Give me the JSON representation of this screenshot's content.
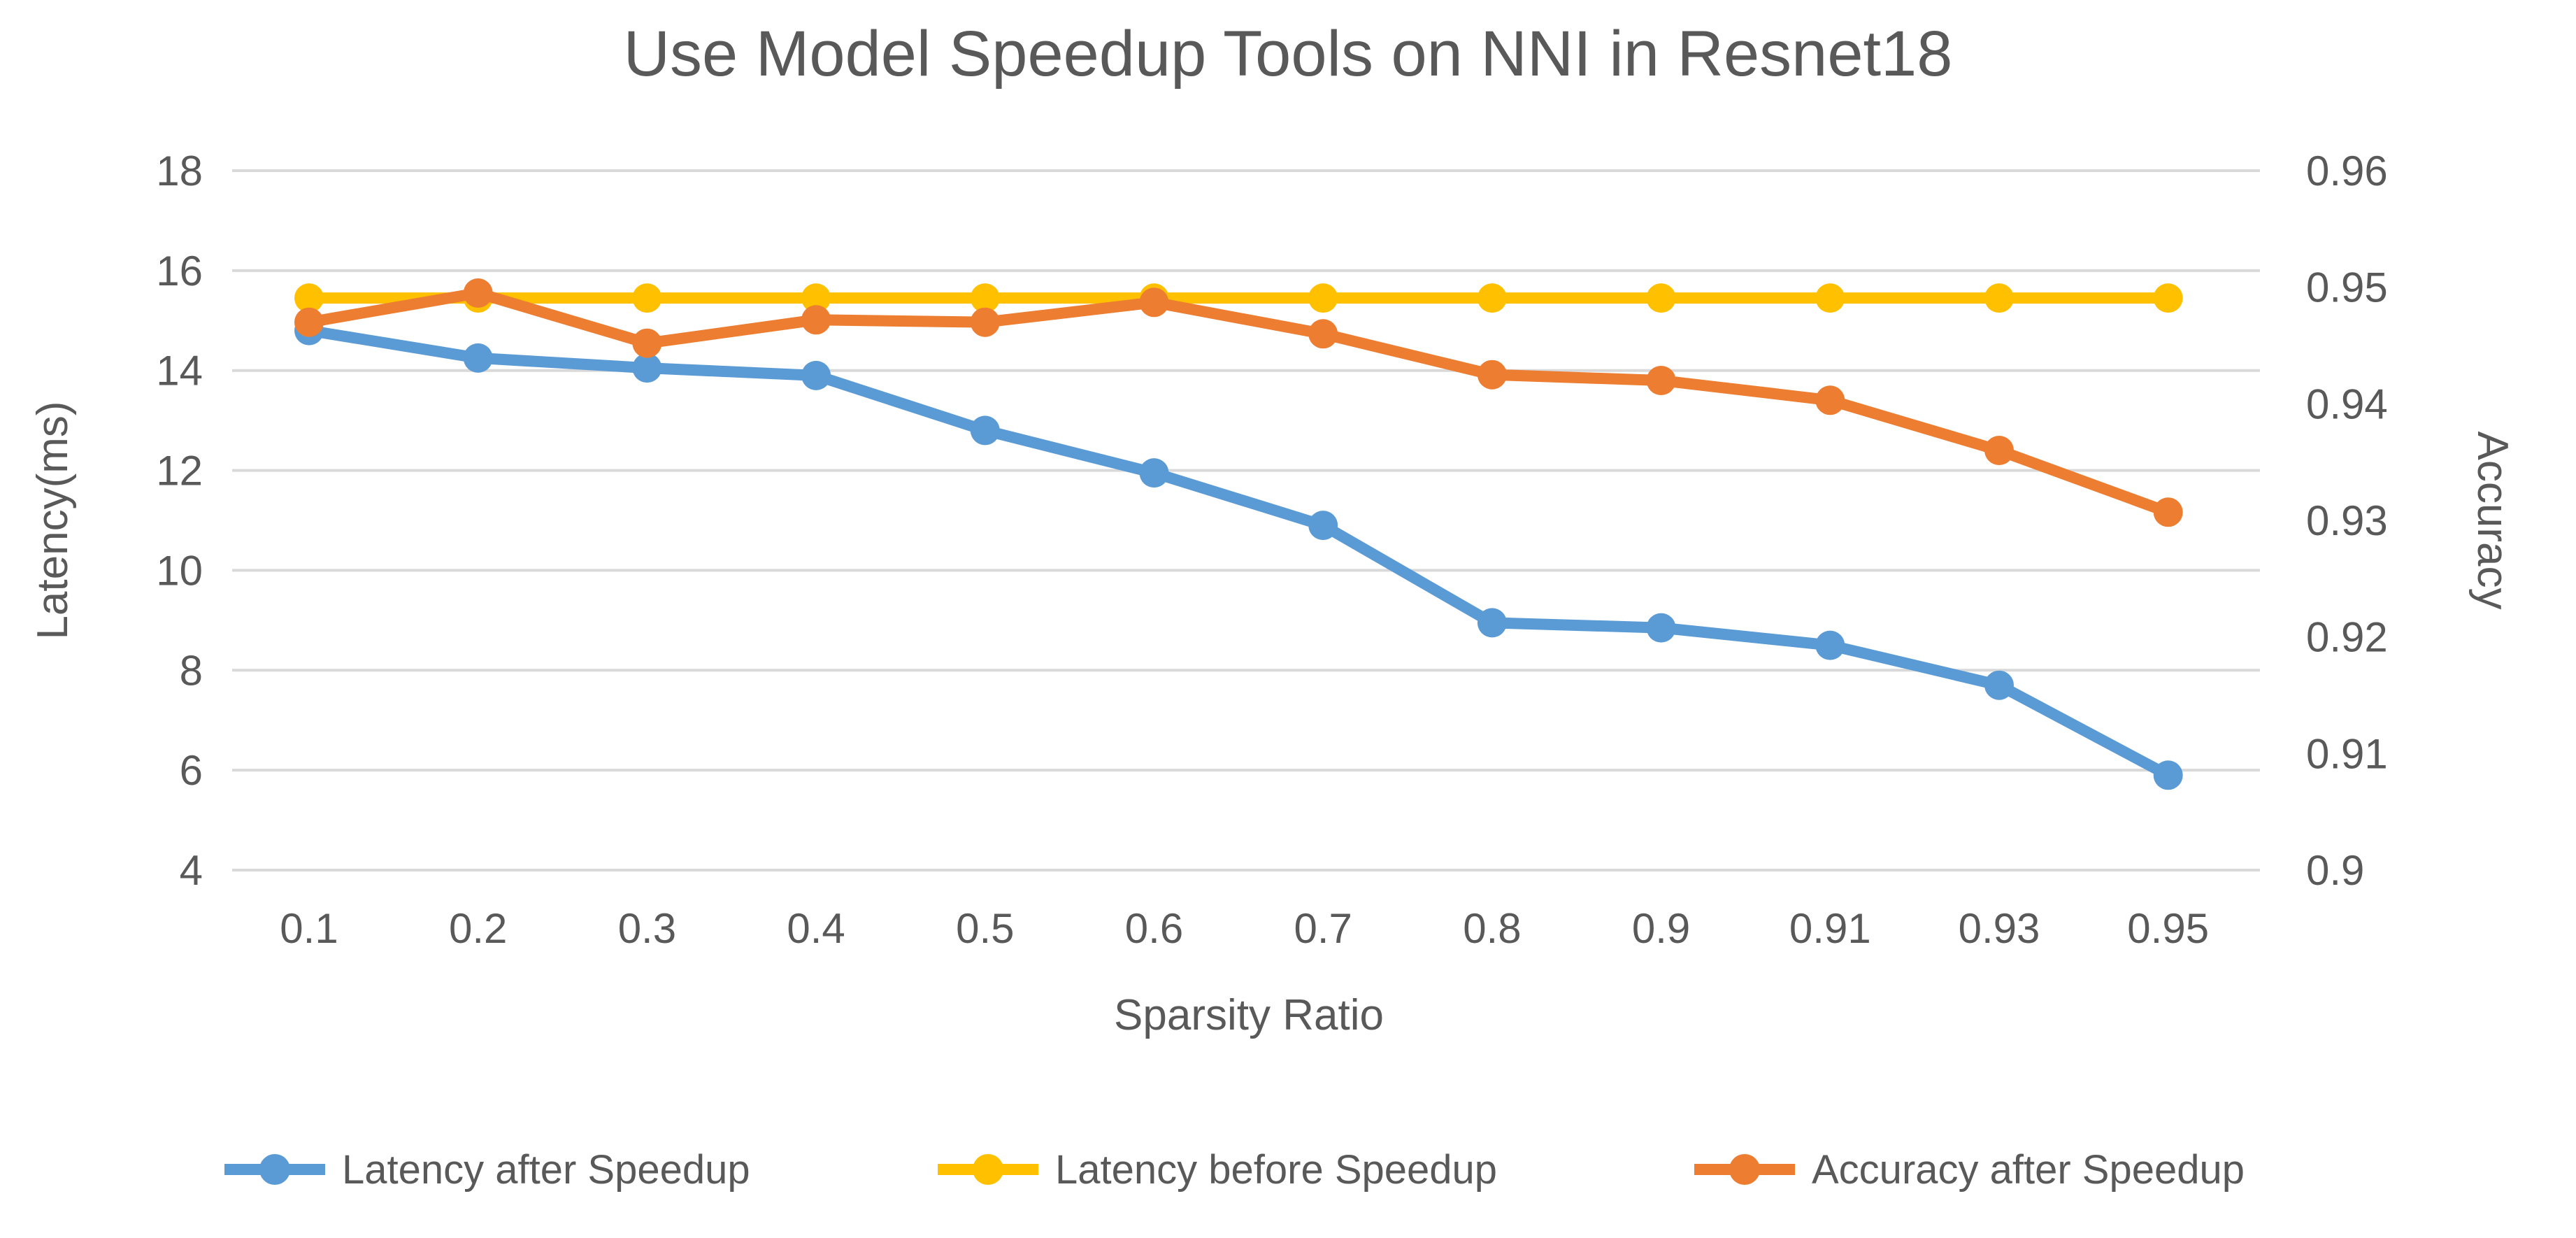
{
  "chart_data": {
    "type": "line",
    "title": "Use Model Speedup Tools on NNI in Resnet18",
    "xlabel": "Sparsity Ratio",
    "ylabel_left": "Latency(ms)",
    "ylabel_right": "Accuracy",
    "grid": true,
    "legend_position": "bottom",
    "background_color": "#FFFFFF",
    "text_color": "#595959",
    "grid_color": "#D9D9D9",
    "categories": [
      "0.1",
      "0.2",
      "0.3",
      "0.4",
      "0.5",
      "0.6",
      "0.7",
      "0.8",
      "0.9",
      "0.91",
      "0.93",
      "0.95"
    ],
    "y_left_axis": {
      "min": 4,
      "max": 18,
      "tick_labels": [
        "18",
        "16",
        "14",
        "12",
        "10",
        "8",
        "6",
        "4"
      ]
    },
    "y_right_axis": {
      "min": 0.9,
      "max": 0.96,
      "tick_labels": [
        "0.96",
        "0.95",
        "0.94",
        "0.93",
        "0.92",
        "0.91",
        "0.9"
      ]
    },
    "series": [
      {
        "name": "Latency after Speedup",
        "axis": "left",
        "color": "#5B9BD5",
        "marker": "circle",
        "values": [
          14.8,
          14.25,
          14.05,
          13.9,
          12.8,
          11.95,
          10.9,
          8.95,
          8.85,
          8.5,
          7.7,
          5.9
        ]
      },
      {
        "name": "Latency before Speedup",
        "axis": "left",
        "color": "#FFC000",
        "marker": "circle",
        "values": [
          15.45,
          15.45,
          15.45,
          15.45,
          15.45,
          15.45,
          15.45,
          15.45,
          15.45,
          15.45,
          15.45,
          15.45
        ]
      },
      {
        "name": "Accuracy after Speedup",
        "axis": "right",
        "color": "#ED7D31",
        "marker": "circle",
        "values": [
          0.947,
          0.9495,
          0.9452,
          0.9472,
          0.947,
          0.9487,
          0.946,
          0.9425,
          0.942,
          0.9403,
          0.936,
          0.9307
        ]
      }
    ]
  }
}
